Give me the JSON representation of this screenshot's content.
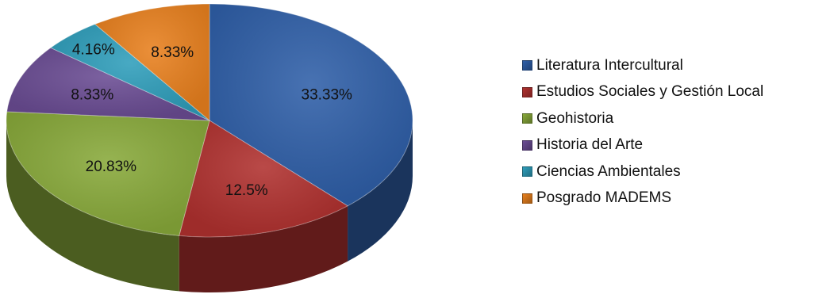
{
  "chart_data": {
    "type": "pie",
    "style": "3d",
    "title": "",
    "legend_position": "right",
    "labels": [
      "Literatura Intercultural",
      "Estudios Sociales y Gestión Local",
      "Geohistoria",
      "Historia del Arte",
      "Ciencias Ambientales",
      "Posgrado MADEMS"
    ],
    "values": [
      33.33,
      12.5,
      20.83,
      8.33,
      4.16,
      8.33
    ],
    "value_labels": [
      "33.33%",
      "12.5%",
      "20.83%",
      "8.33%",
      "4.16%",
      "8.33%"
    ],
    "colors": [
      "#2F5FA8",
      "#B0312F",
      "#88A93A",
      "#6A4C93",
      "#2F9EBB",
      "#E8801E"
    ]
  }
}
